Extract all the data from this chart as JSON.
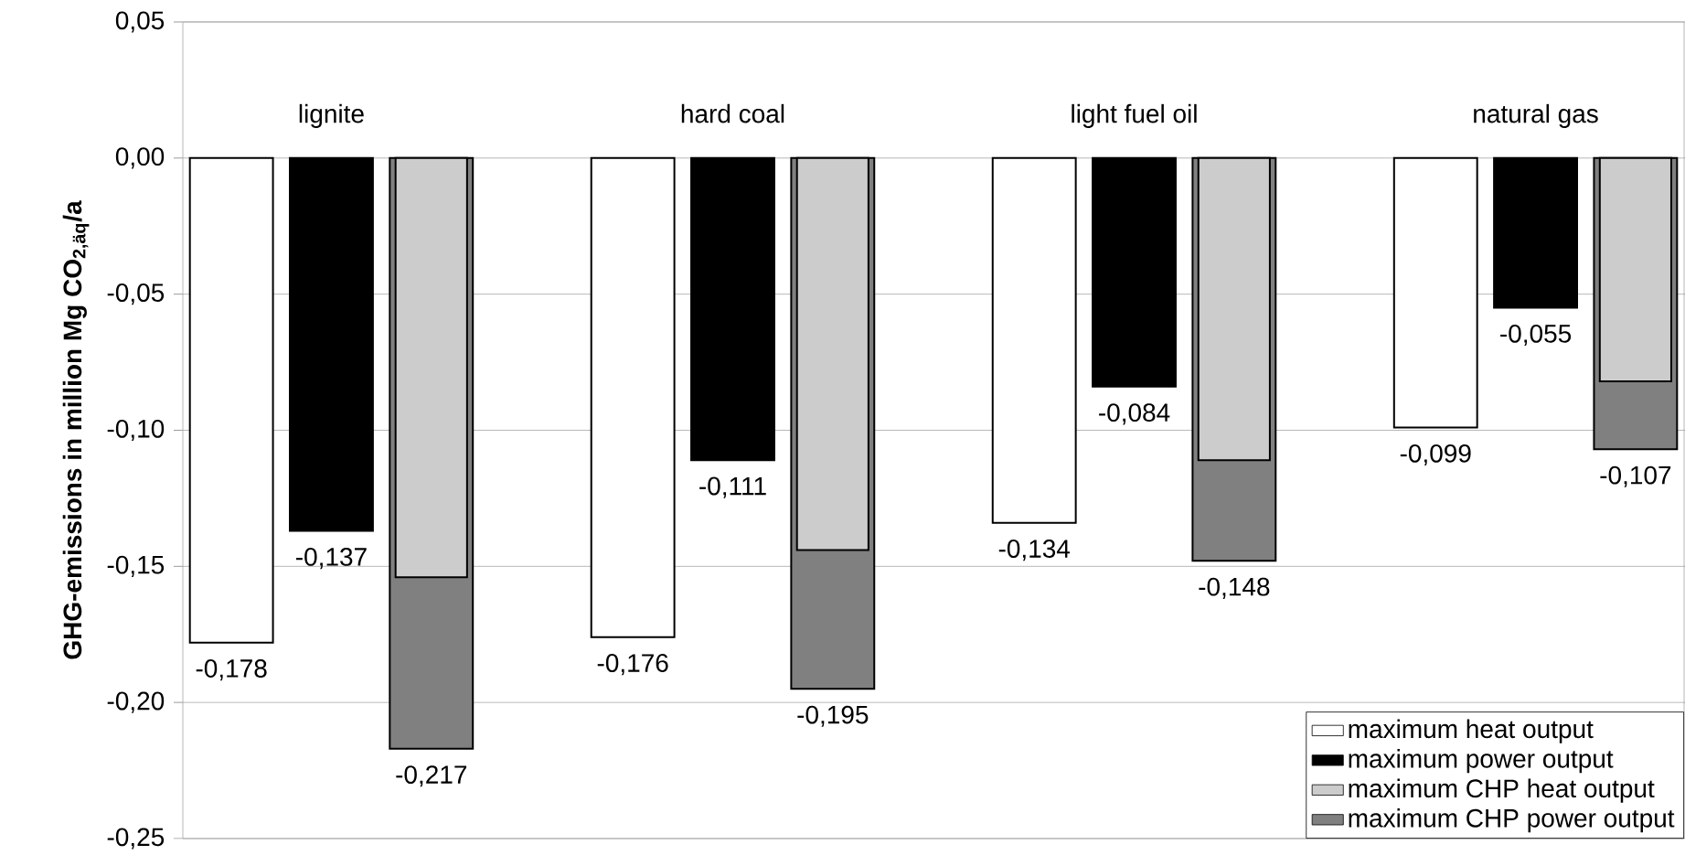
{
  "chart_data": {
    "type": "bar",
    "ylabel": "GHG-emissions in million Mg CO$_{2,äq}$/a",
    "categories": [
      "lignite",
      "hard coal",
      "light fuel oil",
      "natural gas"
    ],
    "series": [
      {
        "name": "maximum heat output",
        "color": "#ffffff",
        "values": [
          -0.178,
          -0.176,
          -0.134,
          -0.099
        ],
        "value_labels": [
          "-0,178",
          "-0,176",
          "-0,134",
          "-0,099"
        ]
      },
      {
        "name": "maximum power output",
        "color": "#000000",
        "values": [
          -0.137,
          -0.111,
          -0.084,
          -0.055
        ],
        "value_labels": [
          "-0,137",
          "-0,111",
          "-0,084",
          "-0,055"
        ]
      },
      {
        "name": "maximum CHP heat output",
        "color": "#cccccc",
        "values": [
          -0.154,
          -0.144,
          -0.111,
          -0.082
        ]
      },
      {
        "name": "maximum CHP power output",
        "color": "#808080",
        "values": [
          -0.217,
          -0.195,
          -0.148,
          -0.107
        ],
        "value_labels": [
          "-0,217",
          "-0,195",
          "-0,148",
          "-0,107"
        ]
      }
    ],
    "ylim": [
      -0.25,
      0.05
    ],
    "yticks": [
      {
        "value": 0.05,
        "label": "0,05"
      },
      {
        "value": 0.0,
        "label": "0,00"
      },
      {
        "value": -0.05,
        "label": "-0,05"
      },
      {
        "value": -0.1,
        "label": "-0,10"
      },
      {
        "value": -0.15,
        "label": "-0,15"
      },
      {
        "value": -0.2,
        "label": "-0,20"
      },
      {
        "value": -0.25,
        "label": "-0,25"
      }
    ],
    "grid": "y",
    "legend": "bottom right"
  }
}
